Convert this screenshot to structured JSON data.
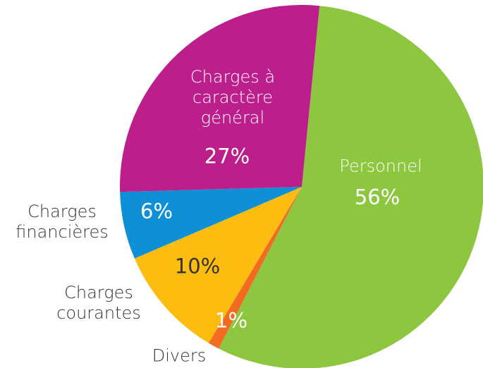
{
  "chart_data": {
    "type": "pie",
    "categories": [
      "Personnel",
      "Divers",
      "Charges courantes",
      "Charges financières",
      "Charges à caractère général"
    ],
    "values": [
      56,
      1,
      10,
      6,
      27
    ],
    "value_labels": [
      "56%",
      "1%",
      "10%",
      "6%",
      "27%"
    ],
    "colors": [
      "#8dc63f",
      "#f26b21",
      "#fdbd10",
      "#0f8fd6",
      "#bc1e8c"
    ]
  }
}
